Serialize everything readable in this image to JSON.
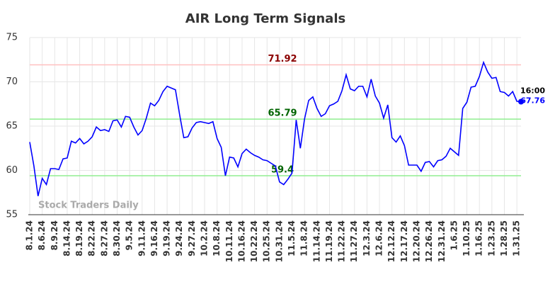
{
  "chart_data": {
    "type": "line",
    "title": "AIR Long Term Signals",
    "watermark": "Stock Traders Daily",
    "color": "#0000ff",
    "ylim": [
      55,
      75
    ],
    "yticks": [
      55,
      60,
      65,
      70,
      75
    ],
    "grid": true,
    "last_time": "16:00",
    "hlines": [
      {
        "value": 71.92,
        "color": "#ffc0c0",
        "label_color": "#8b0000"
      },
      {
        "value": 65.79,
        "color": "#90ee90",
        "label_color": "#006400"
      },
      {
        "value": 59.4,
        "color": "#90ee90",
        "label_color": "#006400"
      }
    ],
    "categories": [
      "8.1.24",
      null,
      null,
      "8.6.24",
      null,
      null,
      "8.9.24",
      null,
      null,
      "8.14.24",
      null,
      null,
      "8.19.24",
      null,
      null,
      "8.22.24",
      null,
      null,
      "8.27.24",
      null,
      null,
      "8.30.24",
      null,
      null,
      "9.5.24",
      null,
      null,
      "9.11.24",
      null,
      null,
      "9.16.24",
      null,
      null,
      "9.19.24",
      null,
      null,
      "9.24.24",
      null,
      null,
      "9.27.24",
      null,
      null,
      "10.2.24",
      null,
      null,
      "10.8.24",
      null,
      null,
      "10.11.24",
      null,
      null,
      "10.16.24",
      null,
      null,
      "10.22.24",
      null,
      null,
      "10.25.24",
      null,
      null,
      "10.31.24",
      null,
      null,
      "11.5.24",
      null,
      null,
      "11.8.24",
      null,
      null,
      "11.14.24",
      null,
      null,
      "11.19.24",
      null,
      null,
      "11.22.24",
      null,
      null,
      "11.27.24",
      null,
      null,
      "12.3.24",
      null,
      null,
      "12.6.24",
      null,
      null,
      "12.12.24",
      null,
      null,
      "12.17.24",
      null,
      null,
      "12.20.24",
      null,
      null,
      "12.26.24",
      null,
      null,
      "12.31.24",
      null,
      null,
      "1.6.25",
      null,
      null,
      "1.10.25",
      null,
      null,
      "1.16.25",
      null,
      null,
      "1.23.25",
      null,
      null,
      "1.28.25",
      null,
      null,
      "1.31.25",
      null
    ],
    "values": [
      63.2,
      60.5,
      57.1,
      59.1,
      58.4,
      60.2,
      60.2,
      60.1,
      61.3,
      61.4,
      63.3,
      63.1,
      63.6,
      63.0,
      63.3,
      63.8,
      64.9,
      64.5,
      64.6,
      64.4,
      65.6,
      65.7,
      64.9,
      66.1,
      66.0,
      64.9,
      64.0,
      64.5,
      65.9,
      67.6,
      67.3,
      67.9,
      68.9,
      69.5,
      69.3,
      69.1,
      66.3,
      63.7,
      63.8,
      64.8,
      65.4,
      65.5,
      65.4,
      65.3,
      65.5,
      63.6,
      62.6,
      59.4,
      61.5,
      61.4,
      60.4,
      61.9,
      62.4,
      62.0,
      61.7,
      61.5,
      61.2,
      61.1,
      60.8,
      60.5,
      58.7,
      58.4,
      59.0,
      59.7,
      65.7,
      62.5,
      65.8,
      67.9,
      68.3,
      67.0,
      66.1,
      66.4,
      67.3,
      67.5,
      67.8,
      69.0,
      70.8,
      69.2,
      69.0,
      69.5,
      69.5,
      68.3,
      70.3,
      68.4,
      67.6,
      65.9,
      67.4,
      63.7,
      63.2,
      63.9,
      62.8,
      60.6,
      60.6,
      60.6,
      59.9,
      60.9,
      61.0,
      60.4,
      61.1,
      61.2,
      61.6,
      62.5,
      62.1,
      61.7,
      67.0,
      67.7,
      69.4,
      69.5,
      70.6,
      72.2,
      71.1,
      70.4,
      70.5,
      68.9,
      68.8,
      68.4,
      68.9,
      67.8,
      67.76
    ]
  }
}
